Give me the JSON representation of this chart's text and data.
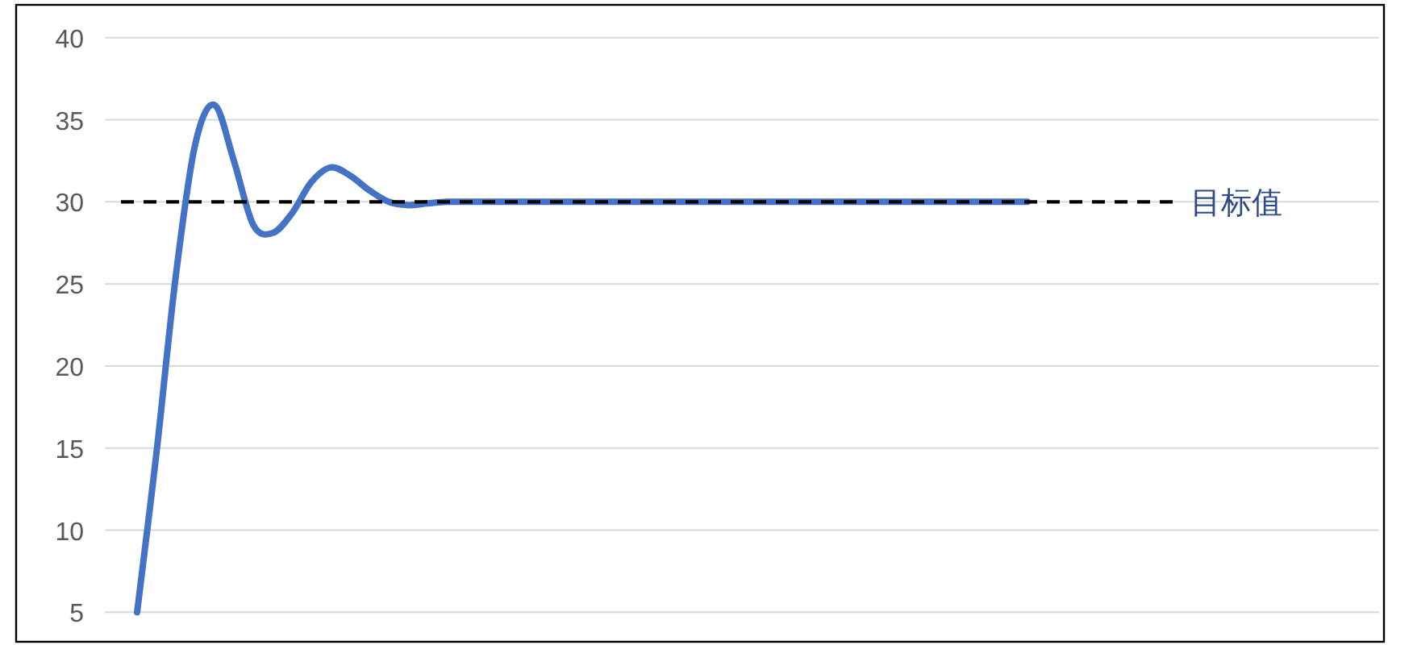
{
  "chart_data": {
    "type": "line",
    "categories": [
      null,
      null,
      null,
      null,
      null,
      null,
      null,
      null,
      null,
      null,
      null,
      null,
      null,
      null,
      null,
      null,
      null,
      null,
      null,
      null,
      null,
      null,
      null,
      null,
      null,
      null,
      null,
      null,
      null,
      null,
      null,
      null,
      null,
      null,
      null,
      null,
      null,
      null,
      null,
      null,
      null,
      null,
      null,
      null,
      null,
      null,
      null
    ],
    "values": [
      5,
      14.7,
      25.5,
      33.5,
      35.9,
      32.5,
      28.6,
      28.1,
      29.3,
      31.2,
      32.1,
      31.6,
      30.7,
      30.0,
      29.8,
      29.9,
      30,
      30,
      30,
      30,
      30,
      30,
      30,
      30,
      30,
      30,
      30,
      30,
      30,
      30,
      30,
      30,
      30,
      30,
      30,
      30,
      30,
      30,
      30,
      30,
      30,
      30,
      30,
      30,
      30,
      30,
      30
    ],
    "color": "#4472c4",
    "ylim": [
      3.2,
      42
    ],
    "yticks": [
      5,
      10,
      15,
      20,
      25,
      30,
      35,
      40
    ],
    "grid": "y",
    "line_style": "solid",
    "ref_lines": [
      {
        "axis": "y",
        "value": 30,
        "label": "目标值",
        "color": "#000000",
        "line_style": "dashed"
      }
    ]
  }
}
